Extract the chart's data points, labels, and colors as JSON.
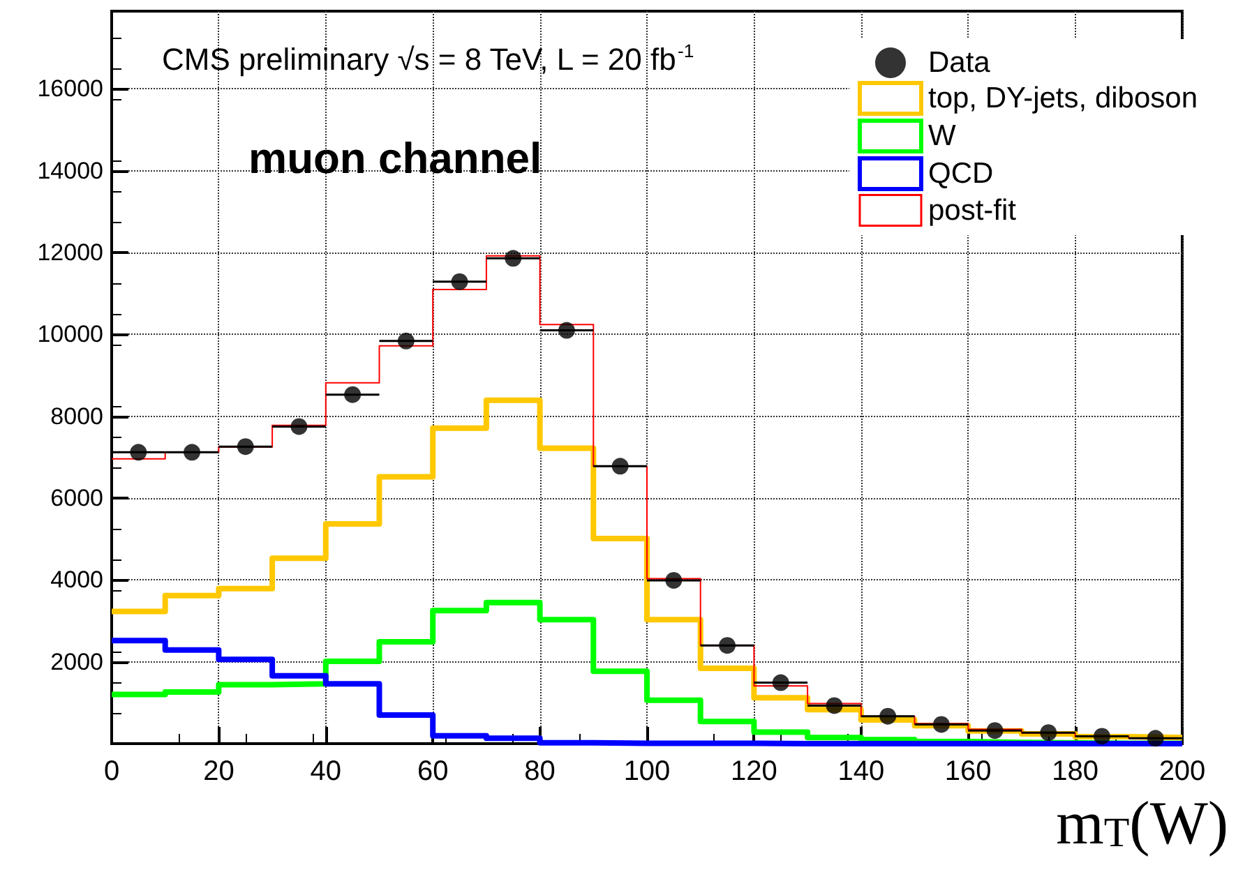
{
  "chart_data": {
    "type": "histogram",
    "annotations": [
      "CMS preliminary √s = 8 TeV, L = 20 fb$^{-1}$",
      "muon channel"
    ],
    "xlabel": "m$_{T}$(W)",
    "bins": [
      0,
      10,
      20,
      30,
      40,
      50,
      60,
      70,
      80,
      90,
      100,
      110,
      120,
      130,
      140,
      150,
      160,
      170,
      180,
      190,
      200
    ],
    "series": [
      {
        "name": "Data",
        "type": "scatter",
        "color": "#000000",
        "marker": "circle",
        "x": [
          5,
          15,
          25,
          35,
          45,
          55,
          65,
          75,
          85,
          95,
          105,
          115,
          125,
          135,
          145,
          155,
          165,
          175,
          185,
          195
        ],
        "values": [
          7120,
          7120,
          7260,
          7750,
          8530,
          9840,
          11290,
          11860,
          10100,
          6780,
          3990,
          2400,
          1490,
          930,
          670,
          470,
          320,
          270,
          180,
          130
        ],
        "xerrors": [
          5,
          5,
          5,
          5,
          5,
          5,
          5,
          5,
          5,
          5,
          5,
          5,
          5,
          5,
          5,
          5,
          5,
          5,
          5,
          5
        ]
      },
      {
        "name": "top, DY-jets, diboson",
        "color": "#ffc800",
        "values": [
          3230,
          3620,
          3790,
          4530,
          5370,
          6520,
          7710,
          8390,
          7220,
          5010,
          3030,
          1840,
          1120,
          830,
          580,
          440,
          310,
          240,
          170,
          150
        ]
      },
      {
        "name": "W",
        "color": "#00ff00",
        "values": [
          1200,
          1260,
          1440,
          1460,
          2010,
          2490,
          3250,
          3450,
          3030,
          1770,
          1060,
          540,
          280,
          150,
          100,
          50,
          30,
          20,
          10,
          10
        ]
      },
      {
        "name": "QCD",
        "color": "#0000ff",
        "values": [
          2520,
          2290,
          2060,
          1660,
          1460,
          700,
          190,
          130,
          20,
          10,
          10,
          10,
          0,
          0,
          0,
          0,
          0,
          0,
          0,
          0
        ]
      },
      {
        "name": "post-fit",
        "color": "#ff0000",
        "values": [
          6960,
          7120,
          7250,
          7780,
          8820,
          9720,
          11100,
          11920,
          10240,
          6780,
          4030,
          2400,
          1410,
          980,
          670,
          490,
          350,
          260,
          180,
          130
        ]
      }
    ],
    "xlim": [
      0,
      200
    ],
    "xticks": [
      0,
      20,
      40,
      60,
      80,
      100,
      120,
      140,
      160,
      180,
      200
    ],
    "ylim": [
      0,
      17900
    ],
    "yticks": [
      2000,
      4000,
      6000,
      8000,
      10000,
      12000,
      14000,
      16000
    ],
    "grid": true,
    "legend": "top right"
  }
}
